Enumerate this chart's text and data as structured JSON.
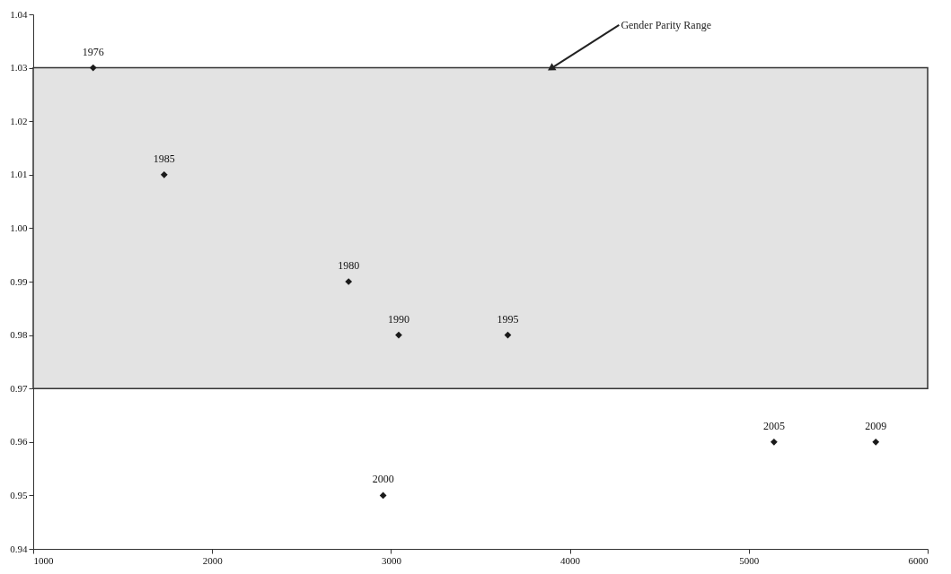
{
  "chart_data": {
    "type": "scatter",
    "x": [
      1335,
      1732,
      2763,
      3043,
      3653,
      2956,
      5141,
      5710
    ],
    "series": [
      {
        "color": "#1a1a1a",
        "values": [
          1.03,
          1.01,
          0.99,
          0.98,
          0.98,
          0.95,
          0.96,
          0.96
        ]
      }
    ],
    "marker": "diamond",
    "grid": false,
    "xlim": [
      1000,
      6000
    ],
    "xticks": [
      1000,
      2000,
      3000,
      4000,
      5000,
      6000
    ],
    "ylim": [
      0.94,
      1.04
    ],
    "yticks": [
      {
        "value": 0.94,
        "label": "0.94"
      },
      {
        "value": 0.95,
        "label": "0.95"
      },
      {
        "value": 0.96,
        "label": "0.96"
      },
      {
        "value": 0.97,
        "label": "0.97"
      },
      {
        "value": 0.98,
        "label": "0.98"
      },
      {
        "value": 0.99,
        "label": "0.99"
      },
      {
        "value": 1.0,
        "label": "1.00"
      },
      {
        "value": 1.01,
        "label": "1.01"
      },
      {
        "value": 1.02,
        "label": "1.02"
      },
      {
        "value": 1.03,
        "label": "1.03"
      },
      {
        "value": 1.04,
        "label": "1.04"
      }
    ],
    "bands": [
      {
        "axis": "y",
        "from": 0.97,
        "to": 1.03,
        "label": "Gender Parity Range",
        "color": "#e3e3e3"
      }
    ],
    "annotations": [
      {
        "text": "1976",
        "x": 1335,
        "y": 1.03
      },
      {
        "text": "1985",
        "x": 1732,
        "y": 1.01
      },
      {
        "text": "1980",
        "x": 2763,
        "y": 0.99
      },
      {
        "text": "1990",
        "x": 3043,
        "y": 0.98
      },
      {
        "text": "1995",
        "x": 3653,
        "y": 0.98
      },
      {
        "text": "2000",
        "x": 2956,
        "y": 0.95
      },
      {
        "text": "2005",
        "x": 5141,
        "y": 0.96
      },
      {
        "text": "2009",
        "x": 5710,
        "y": 0.96
      }
    ]
  }
}
